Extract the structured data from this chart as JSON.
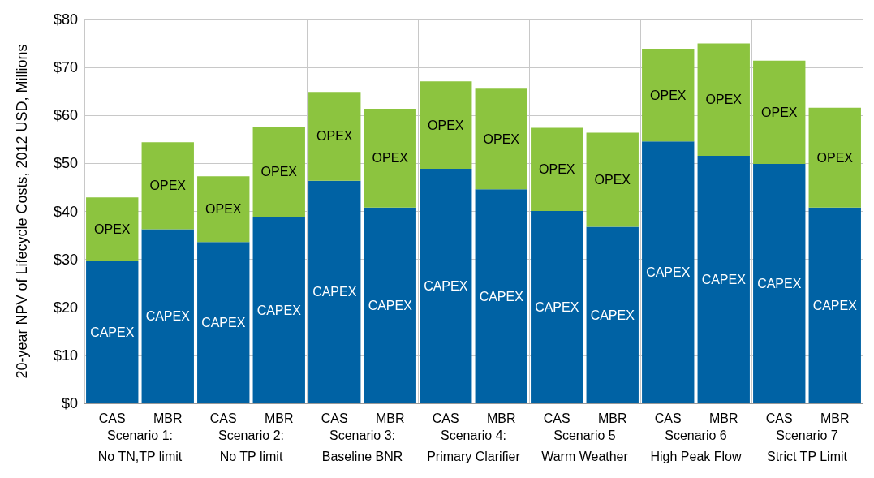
{
  "chart_data": {
    "type": "bar",
    "stacked": true,
    "categories": [
      "CAS",
      "MBR",
      "CAS",
      "MBR",
      "CAS",
      "MBR",
      "CAS",
      "MBR",
      "CAS",
      "MBR",
      "CAS",
      "MBR",
      "CAS",
      "MBR"
    ],
    "series": [
      {
        "name": "CAPEX",
        "color": "#0062a4",
        "values": [
          29.6,
          36.3,
          33.6,
          38.9,
          46.4,
          40.8,
          48.9,
          44.6,
          40.1,
          36.8,
          54.6,
          51.6,
          49.9,
          40.8
        ]
      },
      {
        "name": "OPEX",
        "color": "#8cc43f",
        "values": [
          13.3,
          18.1,
          13.7,
          18.7,
          18.5,
          20.6,
          18.2,
          21.0,
          17.3,
          19.6,
          19.3,
          23.4,
          21.5,
          20.8
        ]
      }
    ],
    "ylabel": "20-year NPV of Lifecycle Costs, 2012 USD, Millions",
    "ylim": [
      0,
      80
    ],
    "yticks": [
      {
        "value": 0,
        "label": "$0"
      },
      {
        "value": 10,
        "label": "$10"
      },
      {
        "value": 20,
        "label": "$20"
      },
      {
        "value": 30,
        "label": "$30"
      },
      {
        "value": 40,
        "label": "$40"
      },
      {
        "value": 50,
        "label": "$50"
      },
      {
        "value": 60,
        "label": "$60"
      },
      {
        "value": 70,
        "label": "$70"
      },
      {
        "value": 80,
        "label": "$80"
      }
    ],
    "annotations": [
      "Scenario 1:\nNo TN,TP limit",
      "Scenario 2:\nNo TP limit",
      "Scenario 3:\nBaseline BNR",
      "Scenario 4:\nPrimary Clarifier",
      "Scenario 5\nWarm Weather",
      "Scenario 6\nHigh Peak Flow",
      "Scenario 7\nStrict TP Limit"
    ],
    "grid": true,
    "legend": false
  }
}
